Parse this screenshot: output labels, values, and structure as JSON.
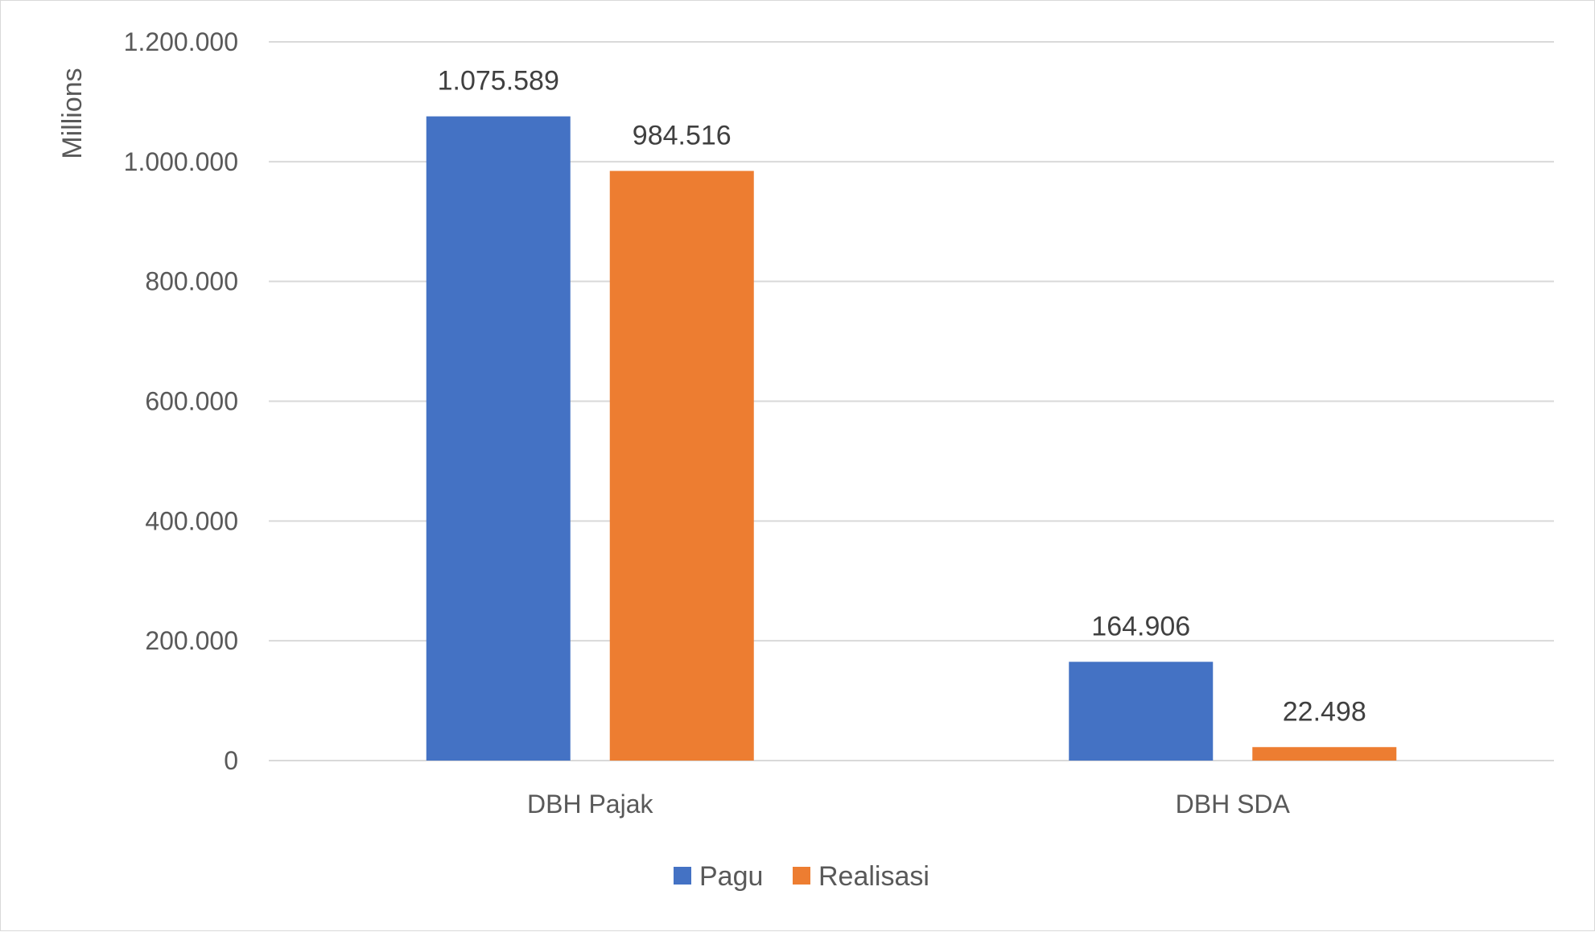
{
  "chart_data": {
    "type": "bar",
    "title": "",
    "xlabel": "",
    "ylabel": "Millions",
    "ylim": [
      0,
      1200000
    ],
    "yticks": [
      0,
      200000,
      400000,
      600000,
      800000,
      1000000,
      1200000
    ],
    "ytick_labels": [
      "0",
      "200.000",
      "400.000",
      "600.000",
      "800.000",
      "1.000.000",
      "1.200.000"
    ],
    "categories": [
      "DBH Pajak",
      "DBH SDA"
    ],
    "series": [
      {
        "name": "Pagu",
        "color": "#4472C4",
        "values": [
          1075589,
          164906
        ],
        "labels": [
          "1.075.589",
          "164.906"
        ]
      },
      {
        "name": "Realisasi",
        "color": "#ED7D31",
        "values": [
          984516,
          22498
        ],
        "labels": [
          "984.516",
          "22.498"
        ]
      }
    ],
    "grid": true,
    "legend": "bottom"
  }
}
